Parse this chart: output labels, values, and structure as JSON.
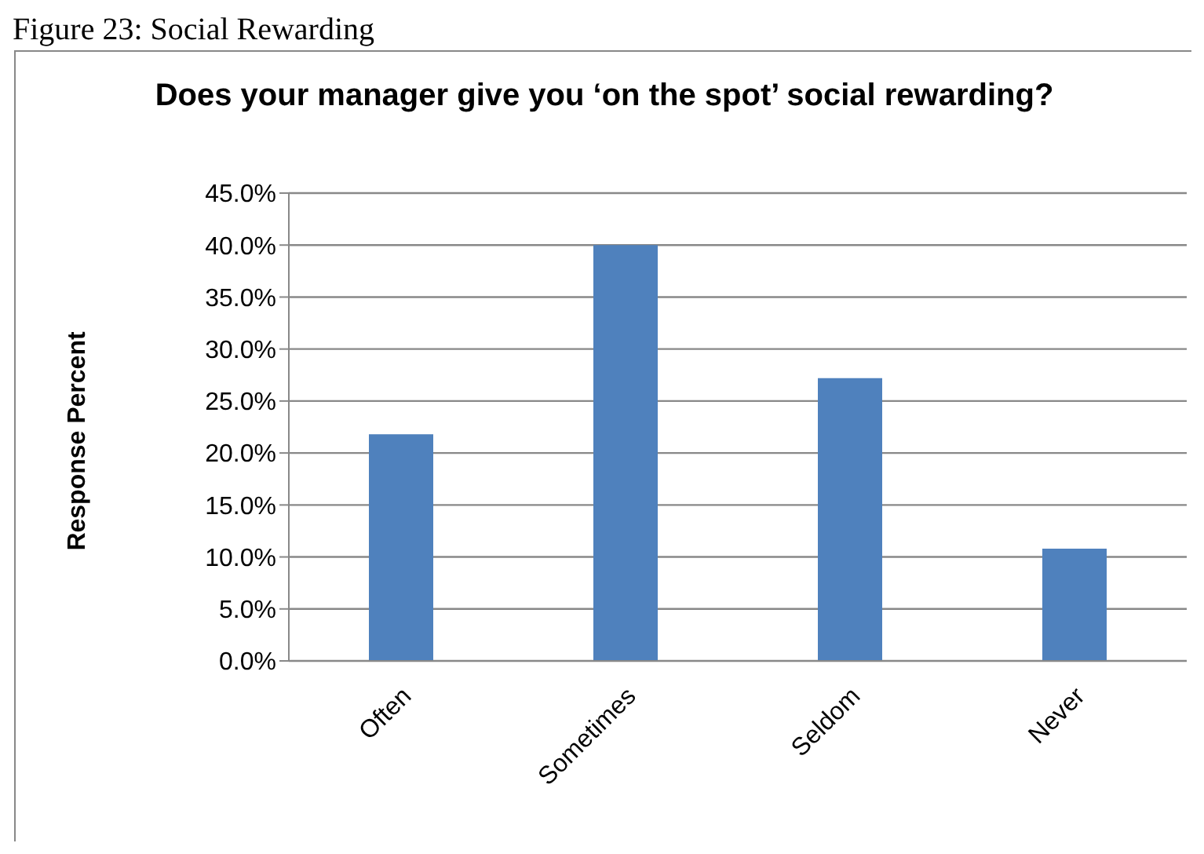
{
  "chart_data": {
    "type": "bar",
    "title": "Does your manager give you ‘on the spot’ social rewarding?",
    "annotations": [
      "Figure 23: Social Rewarding"
    ],
    "ylabel": "Response Percent",
    "categories": [
      "Often",
      "Sometimes",
      "Seldom",
      "Never"
    ],
    "values": [
      21.8,
      40.0,
      27.2,
      10.8
    ],
    "color": "#4f81bd",
    "ylim": [
      0,
      45
    ],
    "yticks": [
      {
        "value": 0,
        "label": "0.0%"
      },
      {
        "value": 5,
        "label": "5.0%"
      },
      {
        "value": 10,
        "label": "10.0%"
      },
      {
        "value": 15,
        "label": "15.0%"
      },
      {
        "value": 20,
        "label": "20.0%"
      },
      {
        "value": 25,
        "label": "25.0%"
      },
      {
        "value": 30,
        "label": "30.0%"
      },
      {
        "value": 35,
        "label": "35.0%"
      },
      {
        "value": 40,
        "label": "40.0%"
      },
      {
        "value": 45,
        "label": "45.0%"
      }
    ],
    "grid": "y"
  }
}
